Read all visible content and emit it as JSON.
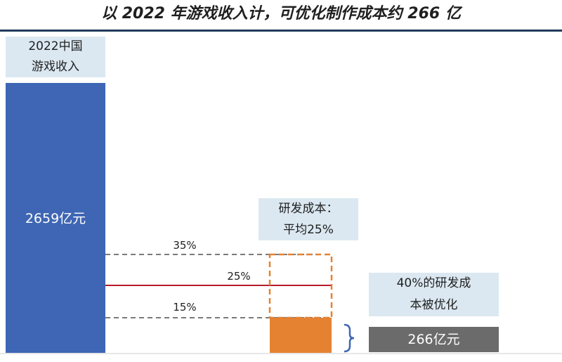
{
  "title": "以 2022 年游戏收入计，可优化制作成本约 266 亿",
  "colors": {
    "revenue_bar": "#3e66b4",
    "rd_cost_bar": "#e58232",
    "saving_bar": "#6b6b6b",
    "mid_line": "#b41e28",
    "guide_line": "#7a7a7a",
    "label_box": "#dbe8f1"
  },
  "labels": {
    "revenue_box": [
      "2022中国",
      "游戏收入"
    ],
    "rd_box": [
      "研发成本：",
      "平均25%"
    ],
    "optimize_box": [
      "40%的研发成",
      "本被优化"
    ]
  },
  "chart_data": {
    "type": "bar",
    "title": "以 2022 年游戏收入计，可优化制作成本约 266 亿",
    "categories": [
      "2022中国游戏收入",
      "研发成本",
      "40%的研发成本被优化"
    ],
    "values": [
      2659,
      664.75,
      266
    ],
    "value_labels": [
      "2659亿元",
      "",
      "266亿元"
    ],
    "unit": "亿元",
    "rd_cost_share": {
      "low": 0.15,
      "avg": 0.25,
      "high": 0.35,
      "low_label": "15%",
      "avg_label": "25%",
      "high_label": "35%"
    },
    "optimized_share_of_rd": 0.4
  }
}
